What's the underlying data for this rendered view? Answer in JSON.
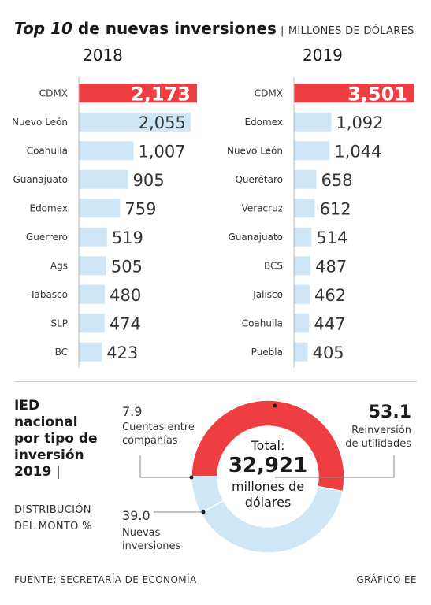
{
  "title": {
    "bold": "Top 10",
    "rest": " de nuevas inversiones",
    "separator": "|",
    "unit": "MILLONES DE DÓLARES"
  },
  "bottom": {
    "heading_line1": "IED",
    "heading_line2": "nacional",
    "heading_line3": "por tipo de",
    "heading_line4": "inversión",
    "heading_line5": "2019",
    "separator": "|",
    "subtitle_line1": "DISTRIBUCIÓN",
    "subtitle_line2": "DEL MONTO %",
    "total_label": "Total:",
    "total_value": "32,921",
    "total_unit_line1": "millones de",
    "total_unit_line2": "dólares",
    "label_cuentas_value": "7.9",
    "label_cuentas_line1": "Cuentas entre",
    "label_cuentas_line2": "compañías",
    "label_nuevas_value": "39.0",
    "label_nuevas_line1": "Nuevas",
    "label_nuevas_line2": "inversiones",
    "label_reinv_value": "53.1",
    "label_reinv_line1": "Reinversión",
    "label_reinv_line2": "de utilidades"
  },
  "footer": {
    "source": "FUENTE: SECRETARÍA DE ECONOMÍA",
    "credit": "GRÁFICO EE"
  },
  "colors": {
    "highlight": "#ef3e42",
    "bar": "#cfe6f6",
    "donut_light": "#cfe6f6",
    "donut_red": "#ef3e42"
  },
  "chart_data": [
    {
      "type": "bar",
      "title": "2018",
      "categories": [
        "CDMX",
        "Nuevo León",
        "Coahuila",
        "Guanajuato",
        "Edomex",
        "Guerrero",
        "Ags",
        "Tabasco",
        "SLP",
        "BC"
      ],
      "values": [
        2173,
        2055,
        1007,
        905,
        759,
        519,
        505,
        480,
        474,
        423
      ],
      "value_labels": [
        "2,173",
        "2,055",
        "1,007",
        "905",
        "759",
        "519",
        "505",
        "480",
        "474",
        "423"
      ],
      "highlight_index": 0,
      "orientation": "horizontal"
    },
    {
      "type": "bar",
      "title": "2019",
      "categories": [
        "CDMX",
        "Edomex",
        "Nuevo León",
        "Querétaro",
        "Veracruz",
        "Guanajuato",
        "BCS",
        "Jalisco",
        "Coahuila",
        "Puebla"
      ],
      "values": [
        3501,
        1092,
        1044,
        658,
        612,
        514,
        487,
        462,
        447,
        405
      ],
      "value_labels": [
        "3,501",
        "1,092",
        "1,044",
        "658",
        "612",
        "514",
        "487",
        "462",
        "447",
        "405"
      ],
      "highlight_index": 0,
      "orientation": "horizontal"
    },
    {
      "type": "pie",
      "donut": true,
      "title": "IED nacional por tipo de inversión 2019",
      "categories": [
        "Reinversión de utilidades",
        "Nuevas inversiones",
        "Cuentas entre compañías"
      ],
      "values": [
        53.1,
        39.0,
        7.9
      ],
      "colors": [
        "#ef3e42",
        "#cfe6f6",
        "#cfe6f6"
      ]
    }
  ]
}
